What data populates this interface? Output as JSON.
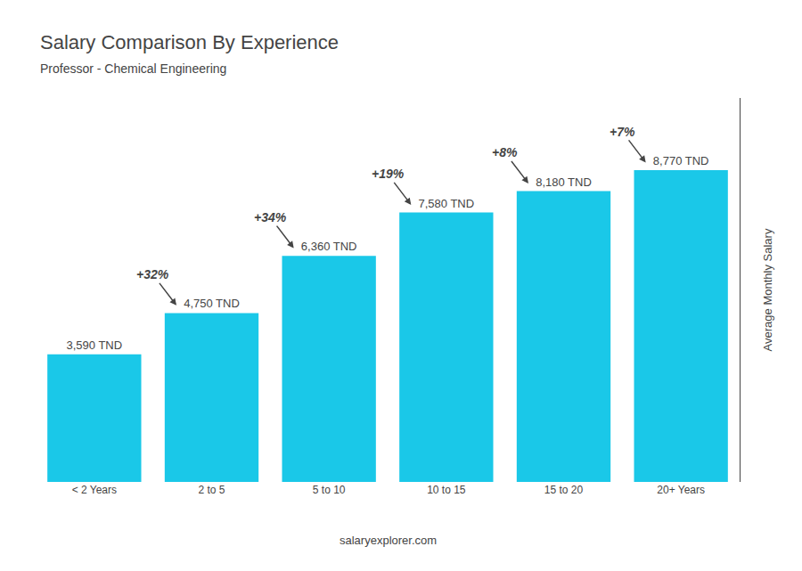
{
  "chart_data": {
    "type": "bar",
    "title": "Salary Comparison By Experience",
    "subtitle": "Professor - Chemical Engineering",
    "ylabel": "Average Monthly Salary",
    "footer": "salaryexplorer.com",
    "categories": [
      "< 2 Years",
      "2 to 5",
      "5 to 10",
      "10 to 15",
      "15 to 20",
      "20+ Years"
    ],
    "values": [
      3590,
      4750,
      6360,
      7580,
      8180,
      8770
    ],
    "value_labels": [
      "3,590 TND",
      "4,750 TND",
      "6,360 TND",
      "7,580 TND",
      "8,180 TND",
      "8,770 TND"
    ],
    "data_labels": true,
    "color": "#1ac8e8",
    "annotations": [
      "+32%",
      "+34%",
      "+19%",
      "+8%",
      "+7%"
    ],
    "ylim": [
      0,
      10800
    ],
    "tick_labels": "x",
    "grid": false
  }
}
